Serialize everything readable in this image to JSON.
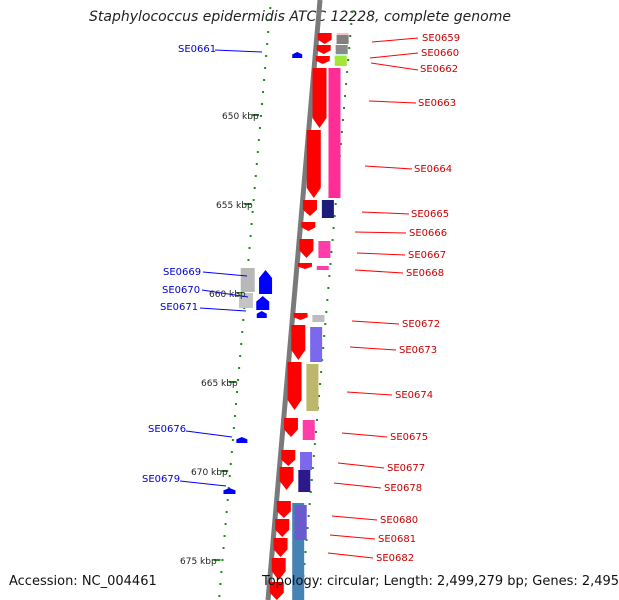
{
  "header": {
    "title": "Staphylococcus epidermidis ATCC 12228, complete genome"
  },
  "footer": {
    "accession": "Accession: NC_004461",
    "summary": "Topology: circular; Length: 2,499,279 bp; Genes: 2,495"
  },
  "scale_labels": [
    "650 kbp",
    "655 kbp",
    "660 kbp",
    "665 kbp",
    "670 kbp",
    "675 kbp"
  ],
  "genes_left": [
    "SE0661",
    "SE0669",
    "SE0670",
    "SE0671",
    "SE0676",
    "SE0679"
  ],
  "genes_right": [
    "SE0659",
    "SE0660",
    "SE0662",
    "SE0663",
    "SE0664",
    "SE0665",
    "SE0666",
    "SE0667",
    "SE0668",
    "SE0672",
    "SE0673",
    "SE0674",
    "SE0675",
    "SE0677",
    "SE0678",
    "SE0680",
    "SE0681",
    "SE0682"
  ],
  "colors": {
    "forward_strand": "#ff0000",
    "reverse_strand": "#0000ff",
    "backbone": "#808080",
    "tick": "#228b22"
  }
}
